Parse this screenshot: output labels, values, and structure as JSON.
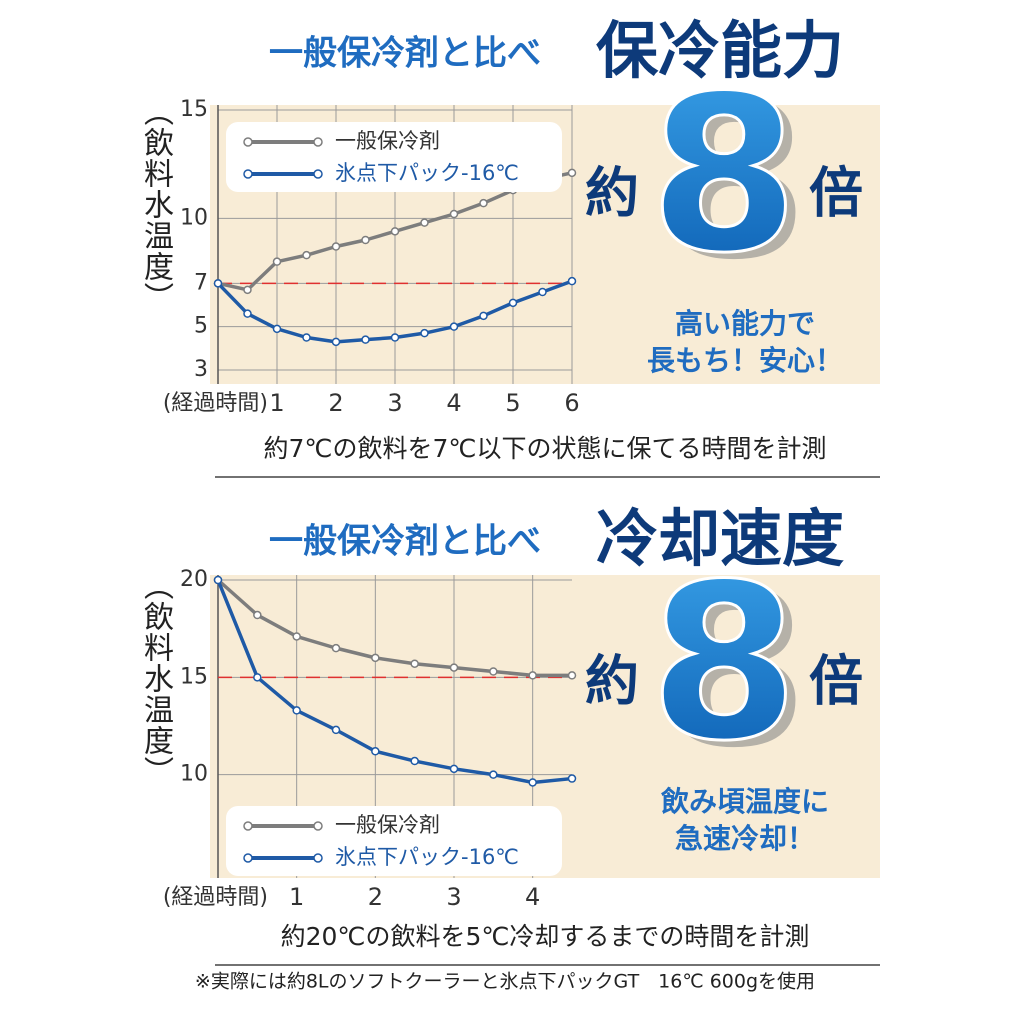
{
  "chart_data": [
    {
      "type": "line",
      "title": "一般保冷剤と比べ",
      "subtitle": "保冷能力",
      "multiplier": {
        "prefix": "約",
        "value": 8,
        "suffix": "倍"
      },
      "message": [
        "高い能力で",
        "長もち！安心！"
      ],
      "ylabel": "（飲料水温度）",
      "xlabel": "(経過時間)",
      "caption": "約7℃の飲料を7℃以下の状態に保てる時間を計測",
      "x": [
        0,
        0.5,
        1,
        1.5,
        2,
        2.5,
        3,
        3.5,
        4,
        4.5,
        5,
        5.5,
        6
      ],
      "series": [
        {
          "name": "一般保冷剤",
          "color": "#7d7d7d",
          "values": [
            7.0,
            6.7,
            8.0,
            8.3,
            8.7,
            9.0,
            9.4,
            9.8,
            10.2,
            10.7,
            11.3,
            11.8,
            12.1
          ]
        },
        {
          "name": "氷点下パック-16℃",
          "color": "#1f5aa6",
          "values": [
            7.0,
            5.6,
            4.9,
            4.5,
            4.3,
            4.4,
            4.5,
            4.7,
            5.0,
            5.5,
            6.1,
            6.6,
            7.1
          ]
        }
      ],
      "reference_line": 7,
      "xlim": [
        0,
        6
      ],
      "xticks": [
        1,
        2,
        3,
        4,
        5,
        6
      ],
      "ylim": [
        3,
        15
      ],
      "yticks": [
        3,
        5,
        7,
        10,
        15
      ],
      "grid": true,
      "legend": "upper left"
    },
    {
      "type": "line",
      "title": "一般保冷剤と比べ",
      "subtitle": "冷却速度",
      "multiplier": {
        "prefix": "約",
        "value": 8,
        "suffix": "倍"
      },
      "message": [
        "飲み頃温度に",
        "急速冷却！"
      ],
      "ylabel": "（飲料水温度）",
      "xlabel": "(経過時間)",
      "caption": "約20℃の飲料を5℃冷却するまでの時間を計測",
      "x": [
        0,
        0.5,
        1,
        1.5,
        2,
        2.5,
        3,
        3.5,
        4,
        4.5
      ],
      "series": [
        {
          "name": "一般保冷剤",
          "color": "#7d7d7d",
          "values": [
            20.0,
            18.2,
            17.1,
            16.5,
            16.0,
            15.7,
            15.5,
            15.3,
            15.1,
            15.1
          ]
        },
        {
          "name": "氷点下パック-16℃",
          "color": "#1f5aa6",
          "values": [
            20.0,
            15.0,
            13.3,
            12.3,
            11.2,
            10.7,
            10.3,
            10.0,
            9.6,
            9.8
          ]
        }
      ],
      "reference_line": 15,
      "xlim": [
        0,
        4.5
      ],
      "xticks": [
        1,
        2,
        3,
        4
      ],
      "ylim": [
        5,
        20
      ],
      "yticks": [
        10,
        15,
        20
      ],
      "grid": true,
      "legend": "lower left"
    }
  ],
  "footnote": "※実際には約8Lのソフトクーラーと氷点下パックGT　16℃ 600gを使用"
}
